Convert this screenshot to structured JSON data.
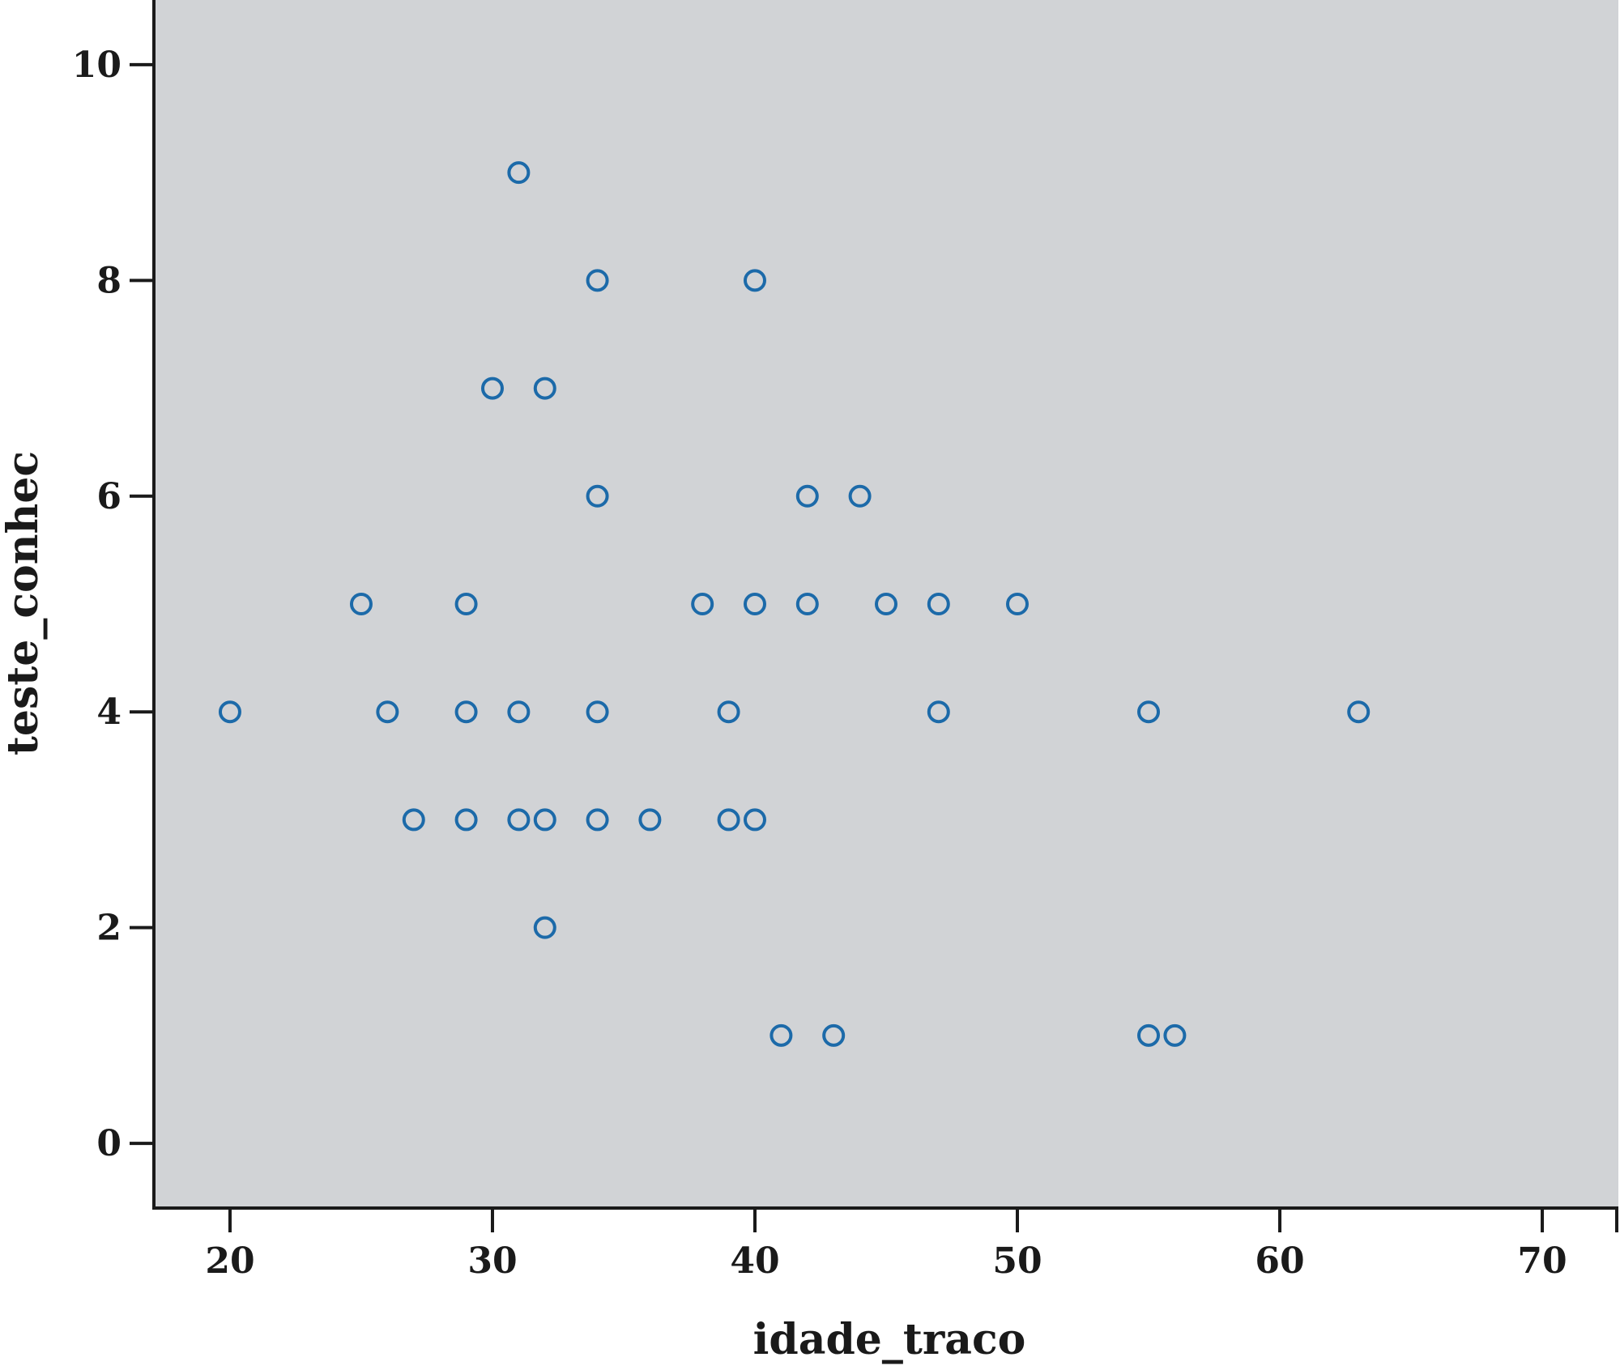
{
  "chart_data": {
    "type": "scatter",
    "title": "",
    "xlabel": "idade_traco",
    "ylabel": "teste_conhec",
    "xlim": [
      17.1,
      72.9
    ],
    "ylim": [
      -0.6,
      10.6
    ],
    "x_ticks": [
      20,
      30,
      40,
      50,
      60,
      70
    ],
    "y_ticks": [
      0,
      2,
      4,
      6,
      8,
      10
    ],
    "grid": false,
    "colors": {
      "plot_background": "#d1d3d6",
      "marker": "#1c6aa9",
      "axis": "#1a1a1a"
    },
    "points": [
      {
        "x": 31,
        "y": 9
      },
      {
        "x": 34,
        "y": 8
      },
      {
        "x": 40,
        "y": 8
      },
      {
        "x": 30,
        "y": 7
      },
      {
        "x": 32,
        "y": 7
      },
      {
        "x": 34,
        "y": 6
      },
      {
        "x": 42,
        "y": 6
      },
      {
        "x": 44,
        "y": 6
      },
      {
        "x": 25,
        "y": 5
      },
      {
        "x": 29,
        "y": 5
      },
      {
        "x": 38,
        "y": 5
      },
      {
        "x": 40,
        "y": 5
      },
      {
        "x": 42,
        "y": 5
      },
      {
        "x": 45,
        "y": 5
      },
      {
        "x": 47,
        "y": 5
      },
      {
        "x": 50,
        "y": 5
      },
      {
        "x": 20,
        "y": 4
      },
      {
        "x": 26,
        "y": 4
      },
      {
        "x": 29,
        "y": 4
      },
      {
        "x": 31,
        "y": 4
      },
      {
        "x": 34,
        "y": 4
      },
      {
        "x": 39,
        "y": 4
      },
      {
        "x": 47,
        "y": 4
      },
      {
        "x": 55,
        "y": 4
      },
      {
        "x": 63,
        "y": 4
      },
      {
        "x": 27,
        "y": 3
      },
      {
        "x": 29,
        "y": 3
      },
      {
        "x": 31,
        "y": 3
      },
      {
        "x": 32,
        "y": 3
      },
      {
        "x": 34,
        "y": 3
      },
      {
        "x": 36,
        "y": 3
      },
      {
        "x": 39,
        "y": 3
      },
      {
        "x": 40,
        "y": 3
      },
      {
        "x": 32,
        "y": 2
      },
      {
        "x": 41,
        "y": 1
      },
      {
        "x": 43,
        "y": 1
      },
      {
        "x": 55,
        "y": 1
      },
      {
        "x": 56,
        "y": 1
      }
    ]
  }
}
